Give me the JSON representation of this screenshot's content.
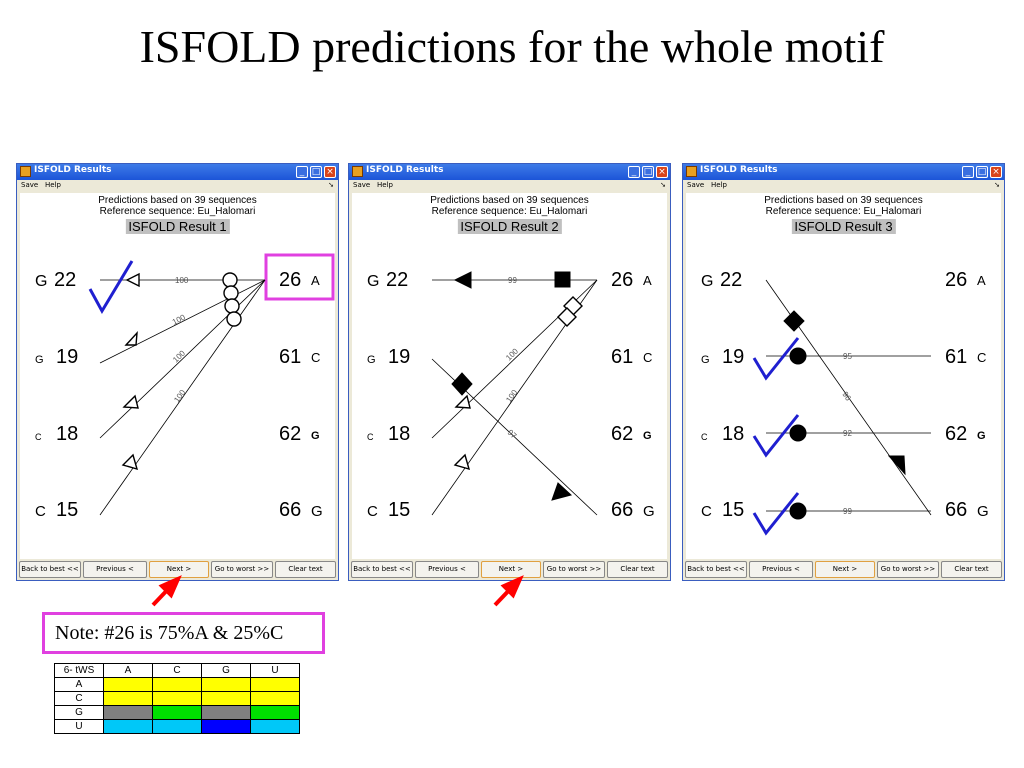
{
  "title": "ISFOLD predictions for the whole motif",
  "windows": [
    {
      "title": "ISFOLD Results",
      "menu": [
        "Save",
        "Help"
      ],
      "pred_line1": "Predictions based on 39 sequences",
      "pred_line2": "Reference sequence: Eu_Halomari",
      "result_title": "ISFOLD Result 1",
      "left_nodes": [
        {
          "letter": "G",
          "num": "22"
        },
        {
          "letter": "G",
          "num": "19"
        },
        {
          "letter": "C",
          "num": "18"
        },
        {
          "letter": "C",
          "num": "15"
        }
      ],
      "right_nodes": [
        {
          "num": "26",
          "letter": "A"
        },
        {
          "num": "61",
          "letter": "C"
        },
        {
          "num": "62",
          "letter": "G"
        },
        {
          "num": "66",
          "letter": "G"
        }
      ],
      "edge_labels": [
        "100",
        "100",
        "100",
        "100"
      ],
      "buttons": [
        "Back to best <<",
        "Previous <",
        "Next >",
        "Go to worst >>",
        "Clear text"
      ]
    },
    {
      "title": "ISFOLD Results",
      "menu": [
        "Save",
        "Help"
      ],
      "pred_line1": "Predictions based on 39 sequences",
      "pred_line2": "Reference sequence: Eu_Halomari",
      "result_title": "ISFOLD Result 2",
      "left_nodes": [
        {
          "letter": "G",
          "num": "22"
        },
        {
          "letter": "G",
          "num": "19"
        },
        {
          "letter": "C",
          "num": "18"
        },
        {
          "letter": "C",
          "num": "15"
        }
      ],
      "right_nodes": [
        {
          "num": "26",
          "letter": "A"
        },
        {
          "num": "61",
          "letter": "C"
        },
        {
          "num": "62",
          "letter": "G"
        },
        {
          "num": "66",
          "letter": "G"
        }
      ],
      "edge_labels": [
        "99",
        "100",
        "100",
        "97"
      ],
      "buttons": [
        "Back to best <<",
        "Previous <",
        "Next >",
        "Go to worst >>",
        "Clear text"
      ]
    },
    {
      "title": "ISFOLD Results",
      "menu": [
        "Save",
        "Help"
      ],
      "pred_line1": "Predictions based on 39 sequences",
      "pred_line2": "Reference sequence: Eu_Halomari",
      "result_title": "ISFOLD Result 3",
      "left_nodes": [
        {
          "letter": "G",
          "num": "22"
        },
        {
          "letter": "G",
          "num": "19"
        },
        {
          "letter": "C",
          "num": "18"
        },
        {
          "letter": "C",
          "num": "15"
        }
      ],
      "right_nodes": [
        {
          "num": "26",
          "letter": "A"
        },
        {
          "num": "61",
          "letter": "C"
        },
        {
          "num": "62",
          "letter": "G"
        },
        {
          "num": "66",
          "letter": "G"
        }
      ],
      "edge_labels": [
        "95",
        "96",
        "92",
        "99"
      ],
      "buttons": [
        "Back to best <<",
        "Previous <",
        "Next >",
        "Go to worst >>",
        "Clear text"
      ]
    }
  ],
  "note": "Note: #26 is 75%A & 25%C",
  "table": {
    "header": [
      "6- tWS",
      "A",
      "C",
      "G",
      "U"
    ],
    "rows": [
      {
        "label": "A",
        "colors": [
          "#ffff00",
          "#ffff00",
          "#ffff00",
          "#ffff00"
        ]
      },
      {
        "label": "C",
        "colors": [
          "#ffff00",
          "#ffff00",
          "#ffff00",
          "#ffff00"
        ]
      },
      {
        "label": "G",
        "colors": [
          "#808080",
          "#00e000",
          "#808080",
          "#00e000"
        ]
      },
      {
        "label": "U",
        "colors": [
          "#00c8f8",
          "#00c8f8",
          "#0000ff",
          "#00c8f8"
        ]
      }
    ]
  },
  "colors": {
    "highlight": "#e040e0",
    "check": "#1f1fd0",
    "arrow": "#ff0000"
  }
}
